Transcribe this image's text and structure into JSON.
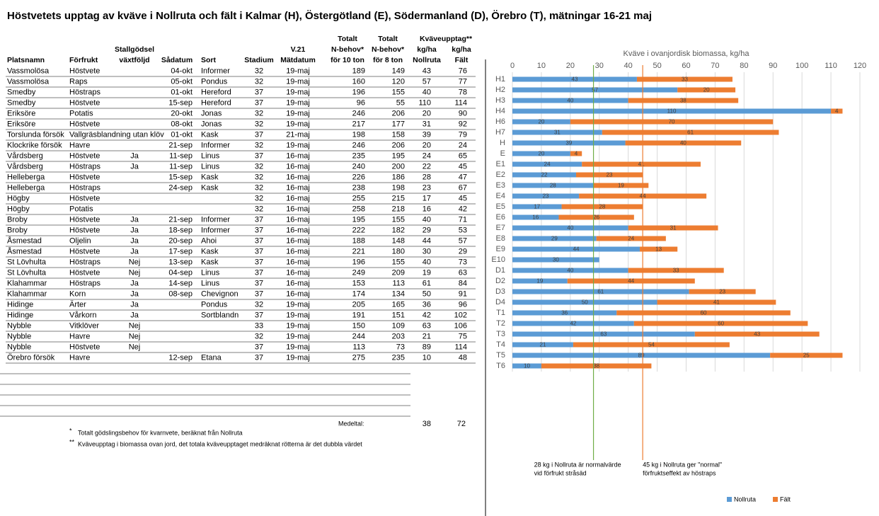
{
  "title": "Höstvetets upptag av kväve i Nollruta och fält i Kalmar (H), Östergötland (E), Södermanland (D), Örebro (T), mätningar 16-21 maj",
  "table": {
    "group_header": "Kväveupptag**",
    "columns": [
      [
        "Platsnamn"
      ],
      [
        "Förfrukt"
      ],
      [
        "Stallgödsel",
        "växtföljd"
      ],
      [
        "Sådatum"
      ],
      [
        "Sort"
      ],
      [
        "Stadium"
      ],
      [
        "V.21",
        "Mätdatum"
      ],
      [
        "Totalt",
        "N-behov*",
        "för 10 ton"
      ],
      [
        "Totalt",
        "N-behov*",
        "för 8 ton"
      ],
      [
        "kg/ha",
        "Nollruta"
      ],
      [
        "kg/ha",
        "Fält"
      ]
    ],
    "rows": [
      [
        "Vassmolösa",
        "Höstvete",
        null,
        "04-okt",
        "Informer",
        32,
        "19-maj",
        189,
        149,
        43,
        76
      ],
      [
        "Vassmolösa",
        "Raps",
        null,
        "05-okt",
        "Pondus",
        32,
        "19-maj",
        160,
        120,
        57,
        77
      ],
      [
        "Smedby",
        "Höstraps",
        null,
        "01-okt",
        "Hereford",
        37,
        "19-maj",
        196,
        155,
        40,
        78
      ],
      [
        "Smedby",
        "Höstvete",
        null,
        "15-sep",
        "Hereford",
        37,
        "19-maj",
        96,
        55,
        110,
        114
      ],
      [
        "Eriksöre",
        "Potatis",
        null,
        "20-okt",
        "Jonas",
        32,
        "19-maj",
        246,
        206,
        20,
        90
      ],
      [
        "Eriksöre",
        "Höstvete",
        null,
        "08-okt",
        "Jonas",
        32,
        "19-maj",
        217,
        177,
        31,
        92
      ],
      [
        "Torslunda försök",
        "Vallgräsblandning utan klöv",
        null,
        "01-okt",
        "Kask",
        37,
        "21-maj",
        198,
        158,
        39,
        79
      ],
      [
        "Klockrike försök",
        "Havre",
        null,
        "21-sep",
        "Informer",
        32,
        "19-maj",
        246,
        206,
        20,
        24
      ],
      [
        "Vårdsberg",
        "Höstvete",
        "Ja",
        "11-sep",
        "Linus",
        37,
        "16-maj",
        235,
        195,
        24,
        65
      ],
      [
        "Vårdsberg",
        "Höstraps",
        "Ja",
        "11-sep",
        "Linus",
        32,
        "16-maj",
        240,
        200,
        22,
        45
      ],
      [
        "Helleberga",
        "Höstvete",
        null,
        "15-sep",
        "Kask",
        32,
        "16-maj",
        226,
        186,
        28,
        47
      ],
      [
        "Helleberga",
        "Höstraps",
        null,
        "24-sep",
        "Kask",
        32,
        "16-maj",
        238,
        198,
        23,
        67
      ],
      [
        "Högby",
        "Höstvete",
        null,
        null,
        null,
        32,
        "16-maj",
        255,
        215,
        17,
        45
      ],
      [
        "Högby",
        "Potatis",
        null,
        null,
        null,
        32,
        "16-maj",
        258,
        218,
        16,
        42
      ],
      [
        "Broby",
        "Höstvete",
        "Ja",
        "21-sep",
        "Informer",
        37,
        "16-maj",
        195,
        155,
        40,
        71
      ],
      [
        "Broby",
        "Höstvete",
        "Ja",
        "18-sep",
        "Informer",
        37,
        "16-maj",
        222,
        182,
        29,
        53
      ],
      [
        "Åsmestad",
        "Oljelin",
        "Ja",
        "20-sep",
        "Ahoi",
        37,
        "16-maj",
        188,
        148,
        44,
        57
      ],
      [
        "Åsmestad",
        "Höstvete",
        "Ja",
        "17-sep",
        "Kask",
        37,
        "16-maj",
        221,
        180,
        30,
        29
      ],
      [
        "St Lövhulta",
        "Höstraps",
        "Nej",
        "13-sep",
        "Kask",
        37,
        "16-maj",
        196,
        155,
        40,
        73
      ],
      [
        "St Lövhulta",
        "Höstvete",
        "Nej",
        "04-sep",
        "Linus",
        37,
        "16-maj",
        249,
        209,
        19,
        63
      ],
      [
        "Klahammar",
        "Höstraps",
        "Ja",
        "14-sep",
        "Linus",
        37,
        "16-maj",
        153,
        113,
        61,
        84
      ],
      [
        "Klahammar",
        "Korn",
        "Ja",
        "08-sep",
        "Chevignon",
        37,
        "16-maj",
        174,
        134,
        50,
        91
      ],
      [
        "Hidinge",
        "Ärter",
        "Ja",
        null,
        "Pondus",
        32,
        "19-maj",
        205,
        165,
        36,
        96
      ],
      [
        "Hidinge",
        "Vårkorn",
        "Ja",
        null,
        "Sortblandn",
        37,
        "19-maj",
        191,
        151,
        42,
        102
      ],
      [
        "Nybble",
        "Vitklöver",
        "Nej",
        null,
        null,
        33,
        "19-maj",
        150,
        109,
        63,
        106
      ],
      [
        "Nybble",
        "Havre",
        "Nej",
        null,
        null,
        32,
        "19-maj",
        244,
        203,
        21,
        75
      ],
      [
        "Nybble",
        "Höstvete",
        "Nej",
        null,
        null,
        37,
        "19-maj",
        113,
        73,
        89,
        114
      ],
      [
        "Örebro försök",
        "Havre",
        null,
        "12-sep",
        "Etana",
        37,
        "19-maj",
        275,
        235,
        10,
        48
      ]
    ],
    "mean": {
      "label": "Medeltal:",
      "values": [
        38,
        72
      ]
    },
    "footnotes": [
      {
        "mark": "*",
        "text": "Totalt gödslingsbehov för kvarnvete, beräknat från Nollruta"
      },
      {
        "mark": "**",
        "text": "Kväveupptag i biomassa ovan jord, det totala kväveupptaget medräknat rötterna är det dubbla värdet"
      }
    ]
  },
  "chart_data": {
    "type": "bar",
    "orientation": "horizontal",
    "stacked": true,
    "title": "Kväve i ovanjordisk biomassa, kg/ha",
    "categories": [
      "H1",
      "H2",
      "H3",
      "H4",
      "H6",
      "H7",
      "H",
      "E",
      "E1",
      "E2",
      "E3",
      "E4",
      "E5",
      "E6",
      "E7",
      "E8",
      "E9",
      "E10",
      "D1",
      "D2",
      "D3",
      "D4",
      "T1",
      "T2",
      "T3",
      "T4",
      "T5",
      "T6"
    ],
    "series": [
      {
        "name": "Nollruta",
        "color": "#5b9bd5",
        "values": [
          43,
          57,
          40,
          110,
          20,
          31,
          39,
          20,
          24,
          22,
          28,
          23,
          17,
          16,
          40,
          29,
          44,
          30,
          40,
          19,
          61,
          50,
          36,
          42,
          63,
          21,
          89,
          10
        ]
      },
      {
        "name": "Fält",
        "color": "#ed7d31",
        "values": [
          33,
          20,
          38,
          4,
          70,
          61,
          40,
          4,
          41,
          23,
          19,
          44,
          28,
          26,
          31,
          24,
          13,
          null,
          33,
          44,
          23,
          41,
          60,
          60,
          43,
          54,
          25,
          38
        ]
      }
    ],
    "xlim": [
      0,
      120
    ],
    "xticks": [
      0,
      10,
      20,
      30,
      40,
      50,
      60,
      70,
      80,
      90,
      100,
      110,
      120
    ],
    "grid": true,
    "legend": "bottom",
    "reference_lines": [
      {
        "value": 28,
        "color": "#70ad47",
        "label": [
          "28 kg i Nollruta är normalvärde",
          "vid förfrukt stråsäd"
        ]
      },
      {
        "value": 45,
        "color": "#ed7d31",
        "label": [
          "45 kg i Nollruta ger \"normal\"",
          "förfruktseffekt av höstraps"
        ]
      }
    ]
  }
}
